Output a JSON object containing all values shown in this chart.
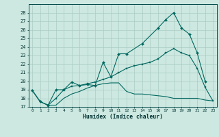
{
  "xlabel": "Humidex (Indice chaleur)",
  "bg_color": "#cce8e0",
  "grid_color": "#aaccc4",
  "line_color": "#006860",
  "ylim": [
    17,
    29
  ],
  "yticks": [
    17,
    18,
    19,
    20,
    21,
    22,
    23,
    24,
    25,
    26,
    27,
    28
  ],
  "xlim": [
    -0.5,
    23.5
  ],
  "xticks": [
    0,
    1,
    2,
    3,
    4,
    5,
    6,
    7,
    8,
    9,
    10,
    11,
    12,
    13,
    14,
    15,
    16,
    17,
    18,
    19,
    20,
    21,
    22,
    23
  ],
  "series_top": {
    "x": [
      0,
      1,
      2,
      3,
      4,
      5,
      6,
      7,
      8,
      9,
      10,
      11,
      12,
      14,
      16,
      17,
      18,
      19,
      20,
      21,
      22
    ],
    "y": [
      18.9,
      17.6,
      17.2,
      19.0,
      19.0,
      19.9,
      19.5,
      19.6,
      19.5,
      22.2,
      20.5,
      23.2,
      23.2,
      24.4,
      26.2,
      27.2,
      28.0,
      26.2,
      25.5,
      23.3,
      20.0
    ]
  },
  "series_mid": {
    "x": [
      0,
      1,
      2,
      3,
      4,
      5,
      6,
      7,
      8,
      9,
      10,
      11,
      12,
      13,
      14,
      15,
      16,
      17,
      18,
      19,
      20,
      21,
      22,
      23
    ],
    "y": [
      18.9,
      17.6,
      17.2,
      18.0,
      19.0,
      19.4,
      19.5,
      19.7,
      19.9,
      20.2,
      20.5,
      21.0,
      21.5,
      21.8,
      22.0,
      22.2,
      22.6,
      23.3,
      23.8,
      23.3,
      23.0,
      21.5,
      19.3,
      17.7
    ]
  },
  "series_bot": {
    "x": [
      0,
      1,
      2,
      3,
      4,
      5,
      6,
      7,
      8,
      9,
      10,
      11,
      12,
      13,
      14,
      15,
      16,
      17,
      18,
      19,
      20,
      21,
      22,
      23
    ],
    "y": [
      18.9,
      17.6,
      17.2,
      17.2,
      18.0,
      18.5,
      18.8,
      19.2,
      19.5,
      19.7,
      19.8,
      19.8,
      18.8,
      18.5,
      18.5,
      18.4,
      18.3,
      18.2,
      18.0,
      18.0,
      18.0,
      18.0,
      17.8,
      17.7
    ]
  }
}
